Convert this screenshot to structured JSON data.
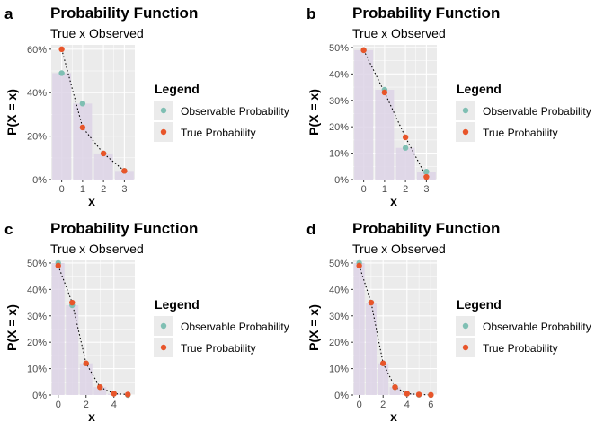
{
  "figure": {
    "legend_title": "Legend",
    "legend_observable": "Observable Probability",
    "legend_true": "True Probability"
  },
  "colors": {
    "observable": "#7fbfb3",
    "true": "#e8552a",
    "bar_fill": "#ddd3e6",
    "panel_bg": "#ebebeb",
    "grid": "#ffffff",
    "line": "#000000"
  },
  "chart_data": [
    {
      "panel": "a",
      "type": "bar",
      "title": "Probability Function",
      "subtitle": "True x Observed",
      "xlabel": "x",
      "ylabel": "P(X = x)",
      "xlim": [
        -0.5,
        3.5
      ],
      "ylim": [
        0,
        0.62
      ],
      "xticks": [
        0,
        1,
        2,
        3
      ],
      "yticks": [
        0,
        0.2,
        0.4,
        0.6
      ],
      "ytick_labels": [
        "0%",
        "20%",
        "40%",
        "60%"
      ],
      "legend_position": "right",
      "series": [
        {
          "name": "Observable Probability",
          "x": [
            0,
            1,
            2,
            3
          ],
          "values": [
            0.49,
            0.35,
            0.12,
            0.04
          ]
        },
        {
          "name": "True Probability",
          "x": [
            0,
            1,
            2,
            3
          ],
          "values": [
            0.6,
            0.24,
            0.12,
            0.04
          ]
        }
      ]
    },
    {
      "panel": "b",
      "type": "bar",
      "title": "Probability Function",
      "subtitle": "True x Observed",
      "xlabel": "x",
      "ylabel": "P(X = x)",
      "xlim": [
        -0.5,
        3.5
      ],
      "ylim": [
        0,
        0.51
      ],
      "xticks": [
        0,
        1,
        2,
        3
      ],
      "yticks": [
        0,
        0.1,
        0.2,
        0.3,
        0.4,
        0.5
      ],
      "ytick_labels": [
        "0%",
        "10%",
        "20%",
        "30%",
        "40%",
        "50%"
      ],
      "legend_position": "right",
      "series": [
        {
          "name": "Observable Probability",
          "x": [
            0,
            1,
            2,
            3
          ],
          "values": [
            0.49,
            0.34,
            0.12,
            0.03
          ]
        },
        {
          "name": "True Probability",
          "x": [
            0,
            1,
            2,
            3
          ],
          "values": [
            0.49,
            0.33,
            0.16,
            0.01
          ]
        }
      ]
    },
    {
      "panel": "c",
      "type": "bar",
      "title": "Probability Function",
      "subtitle": "True x Observed",
      "xlabel": "x",
      "ylabel": "P(X = x)",
      "xlim": [
        -0.5,
        5.5
      ],
      "ylim": [
        0,
        0.51
      ],
      "xticks": [
        0,
        2,
        4
      ],
      "yticks": [
        0,
        0.1,
        0.2,
        0.3,
        0.4,
        0.5
      ],
      "ytick_labels": [
        "0%",
        "10%",
        "20%",
        "30%",
        "40%",
        "50%"
      ],
      "legend_position": "right",
      "series": [
        {
          "name": "Observable Probability",
          "x": [
            0,
            1,
            2,
            3,
            4,
            5
          ],
          "values": [
            0.5,
            0.34,
            0.12,
            0.03,
            0.005,
            0.0
          ]
        },
        {
          "name": "True Probability",
          "x": [
            0,
            1,
            2,
            3,
            4,
            5
          ],
          "values": [
            0.49,
            0.35,
            0.12,
            0.03,
            0.005,
            0.002
          ]
        }
      ]
    },
    {
      "panel": "d",
      "type": "bar",
      "title": "Probability Function",
      "subtitle": "True x Observed",
      "xlabel": "x",
      "ylabel": "P(X = x)",
      "xlim": [
        -0.5,
        6.5
      ],
      "ylim": [
        0,
        0.51
      ],
      "xticks": [
        0,
        2,
        4,
        6
      ],
      "yticks": [
        0,
        0.1,
        0.2,
        0.3,
        0.4,
        0.5
      ],
      "ytick_labels": [
        "0%",
        "10%",
        "20%",
        "30%",
        "40%",
        "50%"
      ],
      "legend_position": "right",
      "series": [
        {
          "name": "Observable Probability",
          "x": [
            0,
            1,
            2,
            3,
            4,
            5,
            6
          ],
          "values": [
            0.5,
            0.35,
            0.12,
            0.03,
            0.005,
            0.001,
            0.0
          ]
        },
        {
          "name": "True Probability",
          "x": [
            0,
            1,
            2,
            3,
            4,
            5,
            6
          ],
          "values": [
            0.49,
            0.35,
            0.12,
            0.03,
            0.005,
            0.002,
            0.0005
          ]
        }
      ]
    }
  ]
}
